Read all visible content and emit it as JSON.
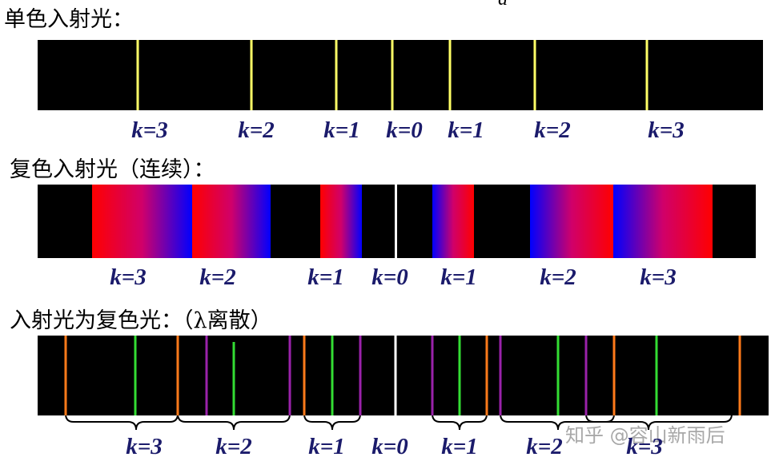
{
  "formula_fragment": "d",
  "sections": [
    {
      "title": "单色入射光：",
      "labels": [
        "k=3",
        "k=2",
        "k=1",
        "k=0",
        "k=1",
        "k=2",
        "k=3"
      ]
    },
    {
      "title": "复色入射光（连续）：",
      "labels": [
        "k=3",
        "k=2",
        "k=1",
        "k=0",
        "k=1",
        "k=2",
        "k=3"
      ]
    },
    {
      "title": "入射光为复色光：（λ离散）",
      "labels": [
        "k=3",
        "k=2",
        "k=1",
        "k=0",
        "k=1",
        "k=2",
        "k=3"
      ]
    }
  ],
  "watermark": "知乎 @容山新雨后"
}
